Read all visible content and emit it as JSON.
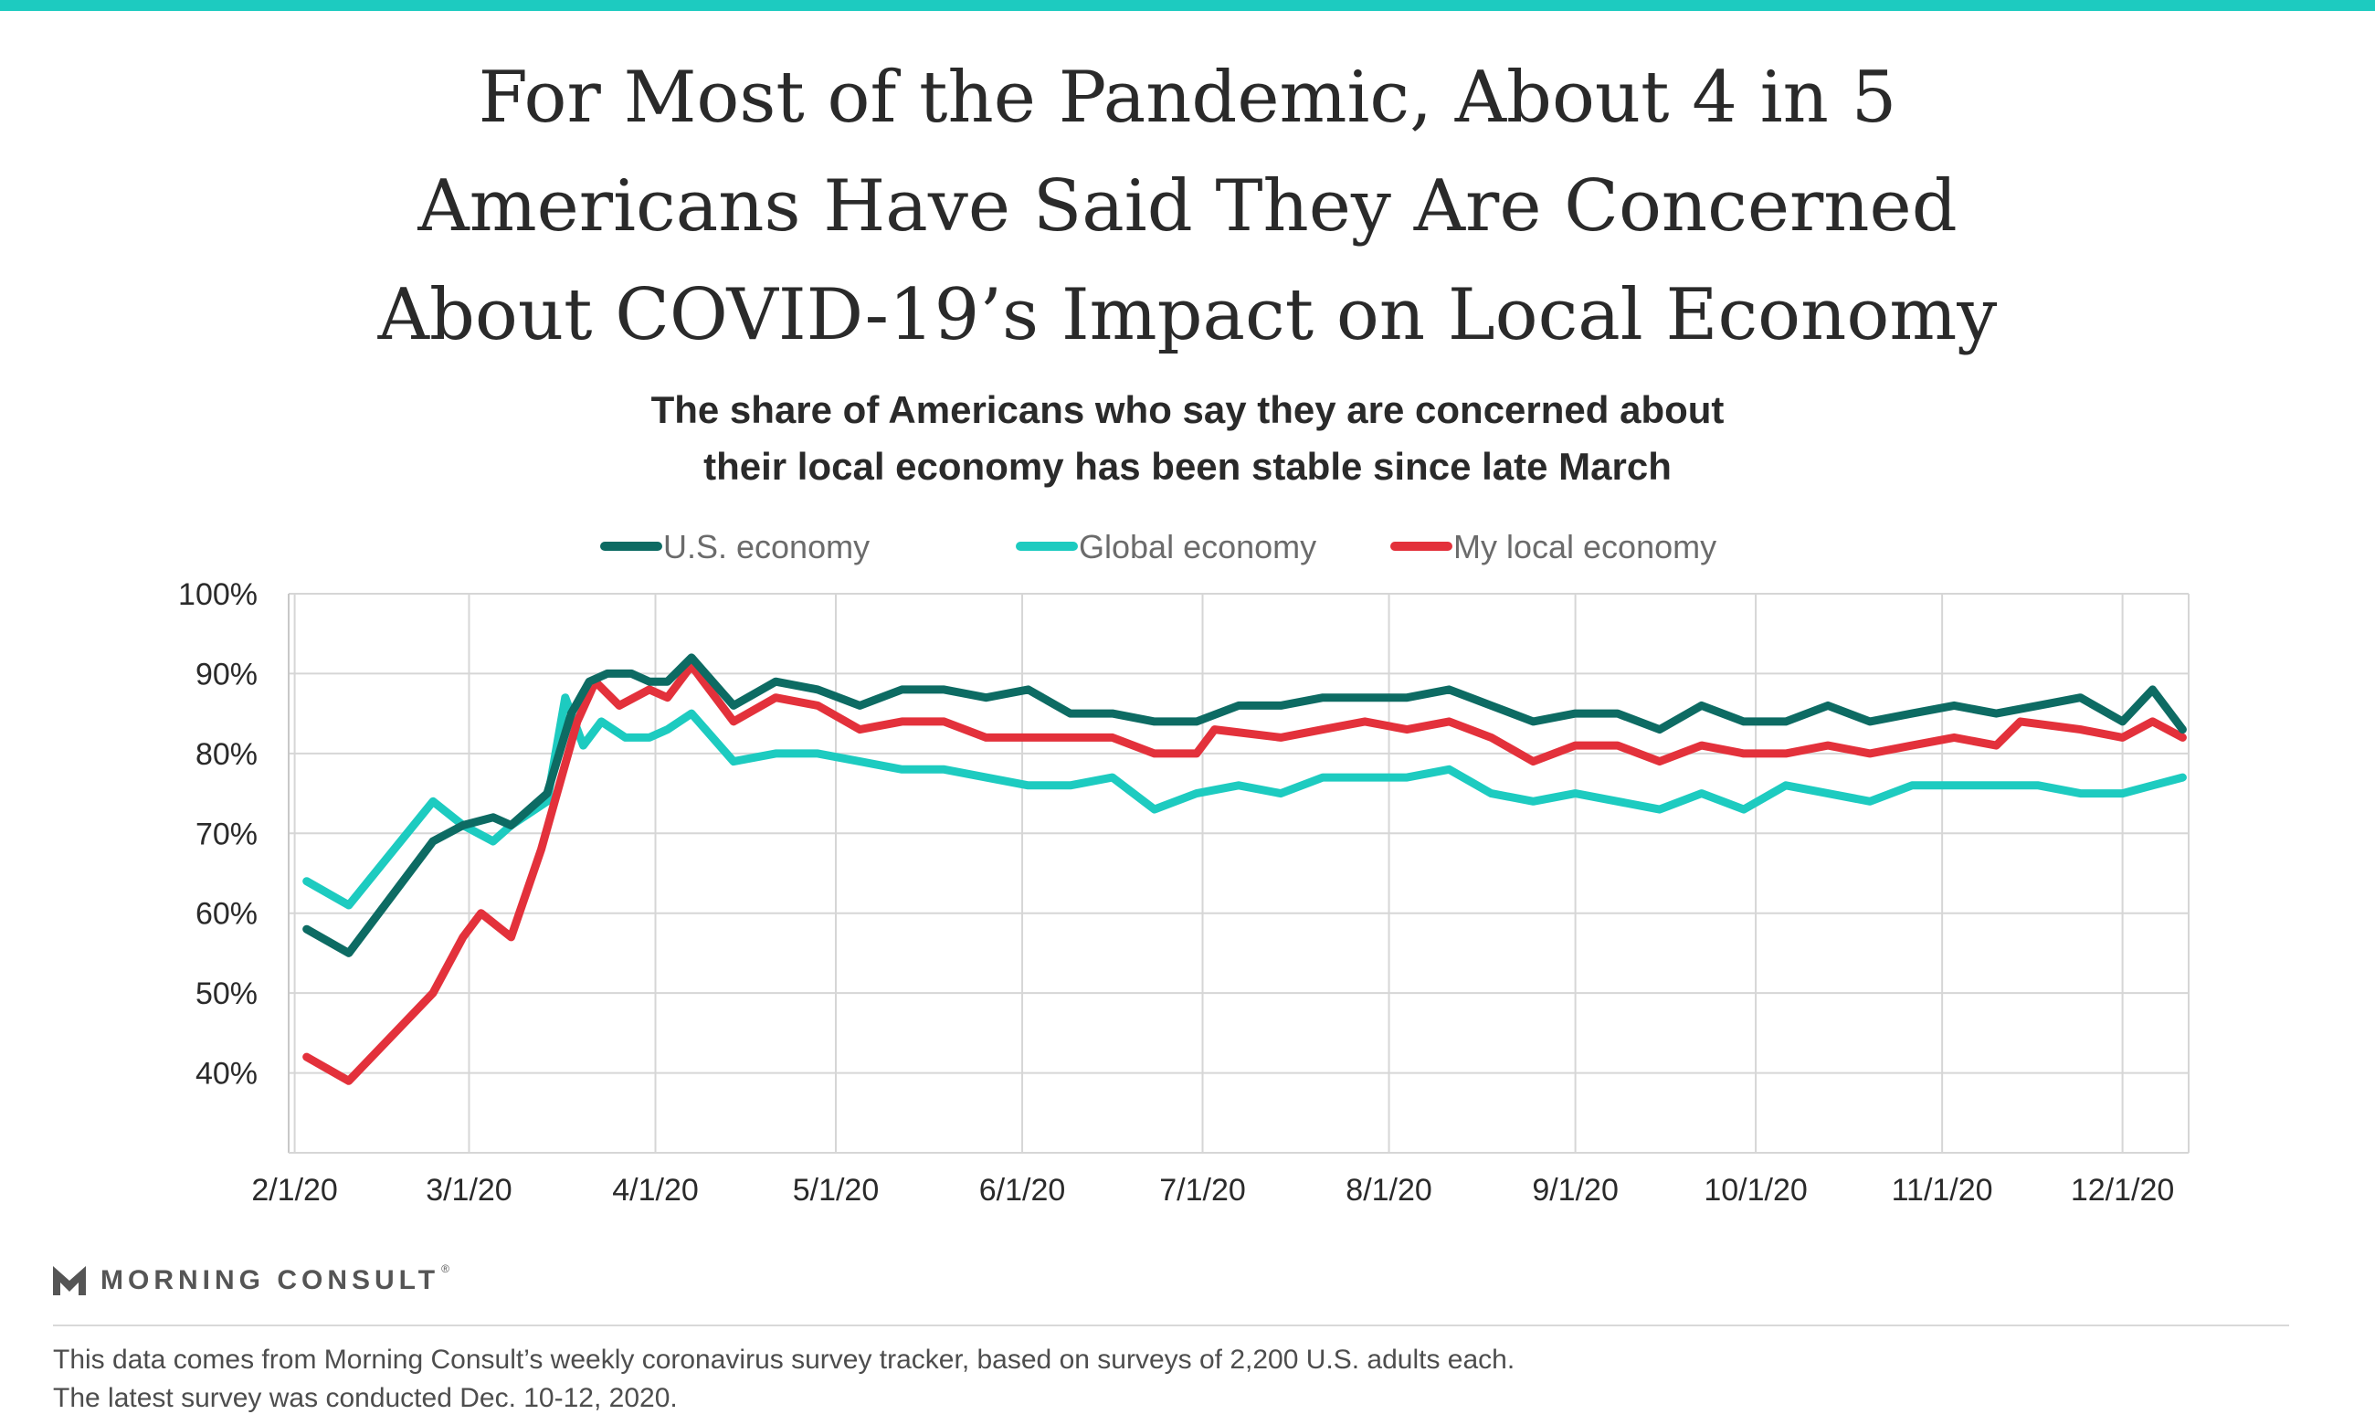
{
  "title_lines": [
    "For Most of the Pandemic, About 4 in 5",
    "Americans Have Said They Are Concerned",
    "About COVID-19’s Impact on Local Economy"
  ],
  "subtitle_lines": [
    "The share of Americans who say they are concerned about",
    "their local economy has been stable since late March"
  ],
  "brand": {
    "name": "MORNING CONSULT",
    "reg": "®"
  },
  "footnote_lines": [
    "This data comes from Morning Consult’s weekly coronavirus survey tracker, based on surveys of 2,200 U.S. adults each.",
    "The latest survey was conducted Dec. 10-12, 2020."
  ],
  "colors": {
    "accent_bar": "#1dcbc0",
    "us": "#0d6b63",
    "global": "#1dcbc0",
    "local": "#e3313b"
  },
  "chart_data": {
    "type": "line",
    "title": "For Most of the Pandemic, About 4 in 5 Americans Have Said They Are Concerned About COVID-19’s Impact on Local Economy",
    "subtitle": "The share of Americans who say they are concerned about their local economy has been stable since late March",
    "legend_position": "top-center",
    "grid": true,
    "xlabel": "",
    "ylabel": "",
    "ylim": [
      30,
      100
    ],
    "y_ticks": [
      40,
      50,
      60,
      70,
      80,
      90,
      100
    ],
    "y_tick_labels": [
      "40%",
      "50%",
      "60%",
      "70%",
      "80%",
      "90%",
      "100%"
    ],
    "x_range": [
      "2020-01-31",
      "2020-12-12"
    ],
    "x_ticks": [
      "2020-02-01",
      "2020-03-01",
      "2020-04-01",
      "2020-05-01",
      "2020-06-01",
      "2020-07-01",
      "2020-08-01",
      "2020-09-01",
      "2020-10-01",
      "2020-11-01",
      "2020-12-01"
    ],
    "x_tick_labels": [
      "2/1/20",
      "3/1/20",
      "4/1/20",
      "5/1/20",
      "6/1/20",
      "7/1/20",
      "8/1/20",
      "9/1/20",
      "10/1/20",
      "11/1/20",
      "12/1/20"
    ],
    "series": [
      {
        "name": "U.S. economy",
        "color": "#0d6b63",
        "points": [
          [
            "2020-02-03",
            58
          ],
          [
            "2020-02-10",
            55
          ],
          [
            "2020-02-24",
            69
          ],
          [
            "2020-02-29",
            71
          ],
          [
            "2020-03-05",
            72
          ],
          [
            "2020-03-08",
            71
          ],
          [
            "2020-03-14",
            75
          ],
          [
            "2020-03-18",
            85
          ],
          [
            "2020-03-21",
            89
          ],
          [
            "2020-03-24",
            90
          ],
          [
            "2020-03-28",
            90
          ],
          [
            "2020-03-31",
            89
          ],
          [
            "2020-04-03",
            89
          ],
          [
            "2020-04-07",
            92
          ],
          [
            "2020-04-14",
            86
          ],
          [
            "2020-04-21",
            89
          ],
          [
            "2020-04-28",
            88
          ],
          [
            "2020-05-05",
            86
          ],
          [
            "2020-05-12",
            88
          ],
          [
            "2020-05-19",
            88
          ],
          [
            "2020-05-26",
            87
          ],
          [
            "2020-06-02",
            88
          ],
          [
            "2020-06-09",
            85
          ],
          [
            "2020-06-16",
            85
          ],
          [
            "2020-06-23",
            84
          ],
          [
            "2020-06-30",
            84
          ],
          [
            "2020-07-07",
            86
          ],
          [
            "2020-07-14",
            86
          ],
          [
            "2020-07-21",
            87
          ],
          [
            "2020-07-28",
            87
          ],
          [
            "2020-08-04",
            87
          ],
          [
            "2020-08-11",
            88
          ],
          [
            "2020-08-18",
            86
          ],
          [
            "2020-08-25",
            84
          ],
          [
            "2020-09-01",
            85
          ],
          [
            "2020-09-08",
            85
          ],
          [
            "2020-09-15",
            83
          ],
          [
            "2020-09-22",
            86
          ],
          [
            "2020-09-29",
            84
          ],
          [
            "2020-10-06",
            84
          ],
          [
            "2020-10-13",
            86
          ],
          [
            "2020-10-20",
            84
          ],
          [
            "2020-10-27",
            85
          ],
          [
            "2020-11-03",
            86
          ],
          [
            "2020-11-10",
            85
          ],
          [
            "2020-11-17",
            86
          ],
          [
            "2020-11-24",
            87
          ],
          [
            "2020-12-01",
            84
          ],
          [
            "2020-12-06",
            88
          ],
          [
            "2020-12-11",
            83
          ]
        ]
      },
      {
        "name": "Global economy",
        "color": "#1dcbc0",
        "points": [
          [
            "2020-02-03",
            64
          ],
          [
            "2020-02-10",
            61
          ],
          [
            "2020-02-24",
            74
          ],
          [
            "2020-02-29",
            71
          ],
          [
            "2020-03-05",
            69
          ],
          [
            "2020-03-08",
            71
          ],
          [
            "2020-03-14",
            74
          ],
          [
            "2020-03-17",
            87
          ],
          [
            "2020-03-20",
            81
          ],
          [
            "2020-03-23",
            84
          ],
          [
            "2020-03-27",
            82
          ],
          [
            "2020-03-31",
            82
          ],
          [
            "2020-04-03",
            83
          ],
          [
            "2020-04-07",
            85
          ],
          [
            "2020-04-14",
            79
          ],
          [
            "2020-04-21",
            80
          ],
          [
            "2020-04-28",
            80
          ],
          [
            "2020-05-05",
            79
          ],
          [
            "2020-05-12",
            78
          ],
          [
            "2020-05-19",
            78
          ],
          [
            "2020-05-26",
            77
          ],
          [
            "2020-06-02",
            76
          ],
          [
            "2020-06-09",
            76
          ],
          [
            "2020-06-16",
            77
          ],
          [
            "2020-06-23",
            73
          ],
          [
            "2020-06-30",
            75
          ],
          [
            "2020-07-07",
            76
          ],
          [
            "2020-07-14",
            75
          ],
          [
            "2020-07-21",
            77
          ],
          [
            "2020-07-28",
            77
          ],
          [
            "2020-08-04",
            77
          ],
          [
            "2020-08-11",
            78
          ],
          [
            "2020-08-18",
            75
          ],
          [
            "2020-08-25",
            74
          ],
          [
            "2020-09-01",
            75
          ],
          [
            "2020-09-08",
            74
          ],
          [
            "2020-09-15",
            73
          ],
          [
            "2020-09-22",
            75
          ],
          [
            "2020-09-29",
            73
          ],
          [
            "2020-10-06",
            76
          ],
          [
            "2020-10-13",
            75
          ],
          [
            "2020-10-20",
            74
          ],
          [
            "2020-10-27",
            76
          ],
          [
            "2020-11-03",
            76
          ],
          [
            "2020-11-10",
            76
          ],
          [
            "2020-11-17",
            76
          ],
          [
            "2020-11-24",
            75
          ],
          [
            "2020-12-01",
            75
          ],
          [
            "2020-12-06",
            76
          ],
          [
            "2020-12-11",
            77
          ]
        ]
      },
      {
        "name": "My local economy",
        "color": "#e3313b",
        "points": [
          [
            "2020-02-03",
            42
          ],
          [
            "2020-02-10",
            39
          ],
          [
            "2020-02-24",
            50
          ],
          [
            "2020-02-29",
            57
          ],
          [
            "2020-03-03",
            60
          ],
          [
            "2020-03-08",
            57
          ],
          [
            "2020-03-13",
            68
          ],
          [
            "2020-03-16",
            76
          ],
          [
            "2020-03-19",
            84
          ],
          [
            "2020-03-22",
            89
          ],
          [
            "2020-03-26",
            86
          ],
          [
            "2020-03-31",
            88
          ],
          [
            "2020-04-03",
            87
          ],
          [
            "2020-04-07",
            91
          ],
          [
            "2020-04-14",
            84
          ],
          [
            "2020-04-21",
            87
          ],
          [
            "2020-04-28",
            86
          ],
          [
            "2020-05-05",
            83
          ],
          [
            "2020-05-12",
            84
          ],
          [
            "2020-05-19",
            84
          ],
          [
            "2020-05-26",
            82
          ],
          [
            "2020-06-02",
            82
          ],
          [
            "2020-06-09",
            82
          ],
          [
            "2020-06-16",
            82
          ],
          [
            "2020-06-23",
            80
          ],
          [
            "2020-06-30",
            80
          ],
          [
            "2020-07-03",
            83
          ],
          [
            "2020-07-14",
            82
          ],
          [
            "2020-07-21",
            83
          ],
          [
            "2020-07-28",
            84
          ],
          [
            "2020-08-04",
            83
          ],
          [
            "2020-08-11",
            84
          ],
          [
            "2020-08-18",
            82
          ],
          [
            "2020-08-25",
            79
          ],
          [
            "2020-09-01",
            81
          ],
          [
            "2020-09-08",
            81
          ],
          [
            "2020-09-15",
            79
          ],
          [
            "2020-09-22",
            81
          ],
          [
            "2020-09-29",
            80
          ],
          [
            "2020-10-06",
            80
          ],
          [
            "2020-10-13",
            81
          ],
          [
            "2020-10-20",
            80
          ],
          [
            "2020-10-27",
            81
          ],
          [
            "2020-11-03",
            82
          ],
          [
            "2020-11-10",
            81
          ],
          [
            "2020-11-14",
            84
          ],
          [
            "2020-11-24",
            83
          ],
          [
            "2020-12-01",
            82
          ],
          [
            "2020-12-06",
            84
          ],
          [
            "2020-12-11",
            82
          ]
        ]
      }
    ]
  }
}
